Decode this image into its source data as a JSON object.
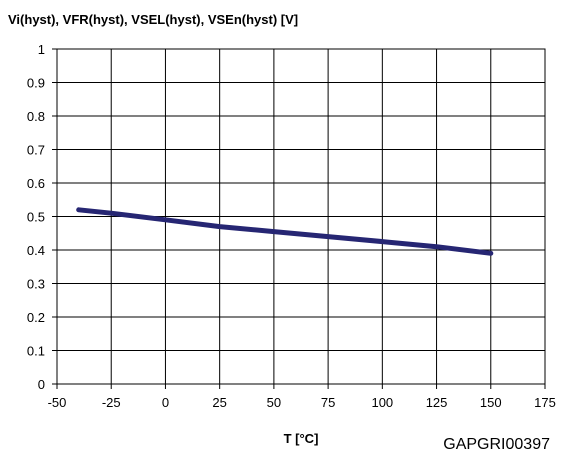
{
  "chart_data": {
    "type": "line",
    "title": "Vi(hyst), VFR(hyst), VSEL(hyst), VSEn(hyst) [V]",
    "xlabel": "T [°C]",
    "ylabel": "",
    "xlim": [
      -50,
      175
    ],
    "ylim": [
      0,
      1
    ],
    "xticks": [
      -50,
      -25,
      0,
      25,
      50,
      75,
      100,
      125,
      150,
      175
    ],
    "yticks": [
      0,
      0.1,
      0.2,
      0.3,
      0.4,
      0.5,
      0.6,
      0.7,
      0.8,
      0.9,
      1
    ],
    "x_tick_labels": [
      "-50",
      "-25",
      "0",
      "25",
      "50",
      "75",
      "100",
      "125",
      "150",
      "175"
    ],
    "y_tick_labels": [
      "0",
      "0.1",
      "0.2",
      "0.3",
      "0.4",
      "0.5",
      "0.6",
      "0.7",
      "0.8",
      "0.9",
      "1"
    ],
    "grid": true,
    "series": [
      {
        "x": [
          -40,
          -25,
          0,
          25,
          50,
          75,
          100,
          125,
          150
        ],
        "values": [
          0.52,
          0.51,
          0.49,
          0.47,
          0.455,
          0.44,
          0.425,
          0.41,
          0.39
        ]
      }
    ],
    "line_color": "#262673",
    "figure_id": "GAPGRI00397"
  }
}
